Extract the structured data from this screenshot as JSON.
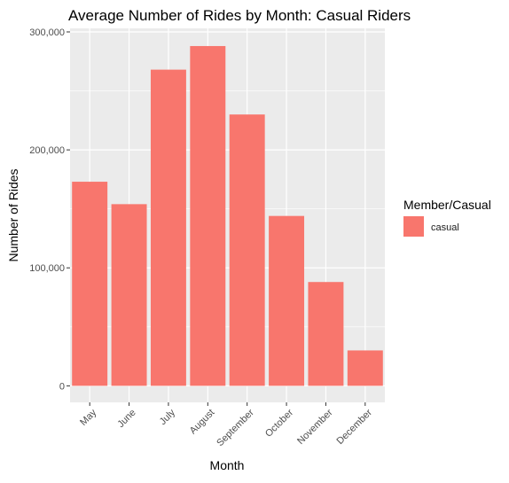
{
  "chart_data": {
    "type": "bar",
    "title": "Average Number of Rides by Month: Casual Riders",
    "xlabel": "Month",
    "ylabel": "Number of Rides",
    "categories": [
      "May",
      "June",
      "July",
      "August",
      "September",
      "October",
      "November",
      "December"
    ],
    "series": [
      {
        "name": "casual",
        "values": [
          173000,
          154000,
          268000,
          288000,
          230000,
          144000,
          88000,
          30000
        ]
      }
    ],
    "ylim": [
      -14000,
      303000
    ],
    "yticks": [
      0,
      100000,
      200000,
      300000
    ],
    "ytick_labels": [
      "0",
      "100,000",
      "200,000",
      "300,000"
    ],
    "legend": {
      "title": "Member/Casual",
      "placement": "right",
      "entries": [
        "casual"
      ]
    },
    "grid": true,
    "colors": {
      "bar": "#F8766D",
      "panel": "#EBEBEB",
      "grid_major": "#FFFFFF",
      "text": "#000000",
      "tick_text": "#4D4D4D"
    }
  }
}
